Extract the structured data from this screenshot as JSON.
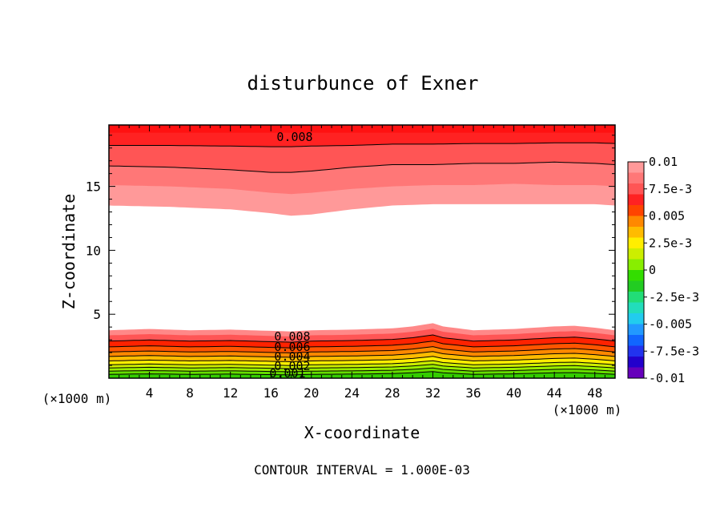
{
  "chart_data": {
    "type": "contour",
    "title": "disturbunce of Exner",
    "xlabel": "X-coordinate",
    "ylabel": "Z-coordinate",
    "x_unit": "(×1000 m)",
    "z_unit": "(×1000 m)",
    "xlim": [
      0,
      50
    ],
    "ylim": [
      0,
      19.8
    ],
    "x_ticks": [
      4,
      8,
      12,
      16,
      20,
      24,
      28,
      32,
      36,
      40,
      44,
      48
    ],
    "y_ticks": [
      5,
      10,
      15
    ],
    "footer": "CONTOUR INTERVAL = 1.000E-03",
    "contour_interval": 0.001,
    "colorbar": {
      "labels": [
        "0.01",
        "7.5e-3",
        "0.005",
        "2.5e-3",
        "0",
        "-2.5e-3",
        "-0.005",
        "-7.5e-3",
        "-0.01"
      ],
      "levels": [
        0.01,
        0.0075,
        0.005,
        0.0025,
        0,
        -0.0025,
        -0.005,
        -0.0075,
        -0.01
      ],
      "colors_top_to_bottom": [
        "#ff9999",
        "#ff7777",
        "#ff5555",
        "#ff2222",
        "#ff4400",
        "#ff8800",
        "#ffbb00",
        "#ffee00",
        "#ccee00",
        "#88ee00",
        "#33dd00",
        "#22cc22",
        "#22dd77",
        "#22ddbb",
        "#22ccee",
        "#2299ff",
        "#1166ff",
        "#2233ee",
        "#2200cc",
        "#6600bb"
      ]
    },
    "bottom_band_colors": [
      "#33cc00",
      "#66dd00",
      "#99ee00",
      "#ccee00",
      "#ffee00",
      "#ffbb00",
      "#ff8800",
      "#ff5500",
      "#ff2200",
      "#ff5555",
      "#ff8888"
    ],
    "bottom_band_tops_z": [
      0.3,
      0.55,
      0.8,
      1.05,
      1.35,
      1.7,
      2.05,
      2.45,
      2.9,
      3.35,
      3.75
    ],
    "bottom_profile": {
      "x": [
        0,
        4,
        8,
        12,
        16,
        18,
        20,
        24,
        28,
        30,
        32,
        33,
        36,
        40,
        44,
        46,
        48,
        50
      ],
      "offset": [
        0.0,
        0.1,
        0.0,
        0.05,
        -0.05,
        -0.1,
        0.0,
        0.05,
        0.15,
        0.3,
        0.55,
        0.3,
        0.0,
        0.1,
        0.3,
        0.35,
        0.2,
        0.0
      ]
    },
    "top_boundaries": {
      "x": [
        0,
        6,
        12,
        16,
        18,
        20,
        24,
        28,
        32,
        36,
        40,
        44,
        48,
        50
      ],
      "z": [
        [
          13.5,
          13.4,
          13.2,
          12.9,
          12.7,
          12.8,
          13.2,
          13.5,
          13.6,
          13.6,
          13.6,
          13.6,
          13.6,
          13.5
        ],
        [
          15.1,
          15.0,
          14.8,
          14.5,
          14.4,
          14.5,
          14.8,
          15.0,
          15.1,
          15.1,
          15.2,
          15.1,
          15.1,
          15.0
        ],
        [
          16.6,
          16.5,
          16.3,
          16.1,
          16.1,
          16.2,
          16.5,
          16.7,
          16.7,
          16.8,
          16.8,
          16.9,
          16.8,
          16.7
        ],
        [
          18.2,
          18.2,
          18.15,
          18.1,
          18.1,
          18.15,
          18.2,
          18.3,
          18.3,
          18.35,
          18.35,
          18.4,
          18.4,
          18.35
        ],
        [
          19.2,
          19.2,
          19.2,
          19.2,
          19.2,
          19.2,
          19.2,
          19.2,
          19.2,
          19.2,
          19.2,
          19.2,
          19.2,
          19.2
        ]
      ],
      "colors_above": [
        "#ff9999",
        "#ff7777",
        "#ff5555",
        "#ff2222",
        "#ff1111"
      ]
    },
    "contour_labels": [
      "0.008",
      "0.008",
      "0.006",
      "0.004",
      "0.002",
      "0.001"
    ]
  }
}
